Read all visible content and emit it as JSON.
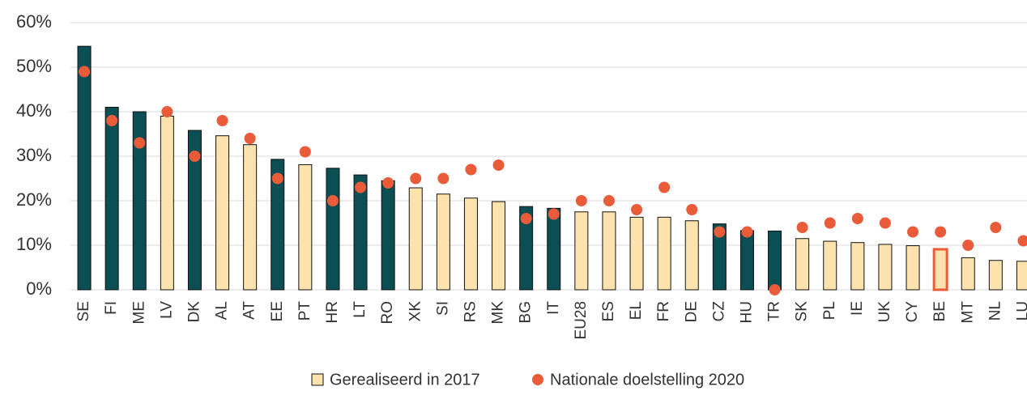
{
  "chart_data": {
    "type": "bar",
    "categories": [
      "SE",
      "FI",
      "ME",
      "LV",
      "DK",
      "AL",
      "AT",
      "EE",
      "PT",
      "HR",
      "LT",
      "RO",
      "XK",
      "SI",
      "RS",
      "MK",
      "BG",
      "IT",
      "EU28",
      "ES",
      "EL",
      "FR",
      "DE",
      "CZ",
      "HU",
      "TR",
      "SK",
      "PL",
      "IE",
      "UK",
      "CY",
      "BE",
      "MT",
      "NL",
      "LU"
    ],
    "series": [
      {
        "name": "Gerealiseerd in 2017",
        "type": "bar",
        "color": "#fce3ae",
        "colors": [
          "#0b4f55",
          "#0b4f55",
          "#0b4f55",
          "#fce3ae",
          "#0b4f55",
          "#fce3ae",
          "#fce3ae",
          "#0b4f55",
          "#fce3ae",
          "#0b4f55",
          "#0b4f55",
          "#0b4f55",
          "#fce3ae",
          "#fce3ae",
          "#fce3ae",
          "#fce3ae",
          "#0b4f55",
          "#0b4f55",
          "#fce3ae",
          "#fce3ae",
          "#fce3ae",
          "#fce3ae",
          "#fce3ae",
          "#0b4f55",
          "#0b4f55",
          "#0b4f55",
          "#fce3ae",
          "#fce3ae",
          "#fce3ae",
          "#fce3ae",
          "#fce3ae",
          "#fce3ae",
          "#fce3ae",
          "#fce3ae",
          "#fce3ae"
        ],
        "edge_colors": [
          "#111",
          "#111",
          "#111",
          "#111",
          "#111",
          "#111",
          "#111",
          "#111",
          "#111",
          "#111",
          "#111",
          "#111",
          "#111",
          "#111",
          "#111",
          "#111",
          "#111",
          "#111",
          "#111",
          "#111",
          "#111",
          "#111",
          "#111",
          "#111",
          "#111",
          "#111",
          "#111",
          "#111",
          "#111",
          "#111",
          "#111",
          "#ea5b3a",
          "#111",
          "#111",
          "#111"
        ],
        "values": [
          54.7,
          41.0,
          40.0,
          39.0,
          35.8,
          34.6,
          32.6,
          29.3,
          28.1,
          27.3,
          25.8,
          24.5,
          22.9,
          21.5,
          20.6,
          19.8,
          18.7,
          18.3,
          17.5,
          17.5,
          16.3,
          16.3,
          15.5,
          14.8,
          13.3,
          13.2,
          11.5,
          10.9,
          10.6,
          10.2,
          9.9,
          9.1,
          7.2,
          6.6,
          6.4
        ]
      },
      {
        "name": "Nationale doelstelling 2020",
        "type": "scatter",
        "color": "#ea5b3a",
        "values": [
          49,
          38,
          33,
          40,
          30,
          38,
          34,
          25,
          31,
          20,
          23,
          24,
          25,
          25,
          27,
          28,
          16,
          17,
          20,
          20,
          18,
          23,
          18,
          13,
          13,
          0,
          14,
          15,
          16,
          15,
          13,
          13,
          10,
          14,
          11
        ]
      }
    ],
    "ylim": [
      0,
      60
    ],
    "yticks": [
      {
        "value": 0,
        "label": "0%"
      },
      {
        "value": 10,
        "label": "10%"
      },
      {
        "value": 20,
        "label": "20%"
      },
      {
        "value": 30,
        "label": "30%"
      },
      {
        "value": 40,
        "label": "40%"
      },
      {
        "value": 50,
        "label": "50%"
      },
      {
        "value": 60,
        "label": "60%"
      }
    ],
    "grid": true,
    "legend": "bottom"
  }
}
